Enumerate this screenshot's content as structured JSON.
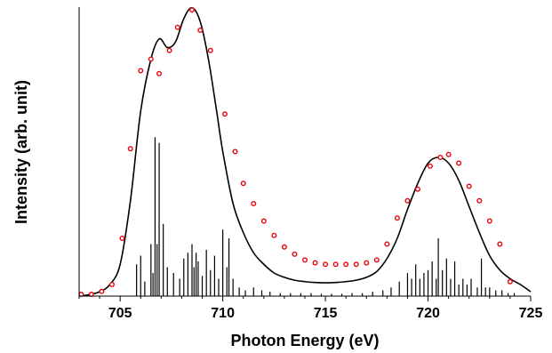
{
  "chart_data": {
    "type": "line",
    "title": "",
    "xlabel": "Photon Energy (eV)",
    "ylabel": "Intensity (arb. unit)",
    "xlim": [
      703,
      725
    ],
    "ylim": [
      0,
      1.0
    ],
    "x_ticks": [
      "705",
      "710",
      "715",
      "720",
      "725"
    ],
    "y_ticks_labeled": false,
    "grid": false,
    "legend": "none",
    "colors": {
      "line": "#000000",
      "points": "#e8000b",
      "sticks": "#000000"
    },
    "series": [
      {
        "kind": "line",
        "x": [
          703.0,
          703.5,
          704.0,
          704.5,
          705.0,
          705.5,
          706.0,
          706.5,
          706.9,
          707.3,
          707.7,
          708.1,
          708.5,
          708.9,
          709.3,
          709.7,
          710.0,
          710.5,
          711.0,
          711.5,
          712.0,
          712.5,
          713.0,
          713.5,
          714.0,
          714.5,
          715.0,
          715.5,
          716.0,
          716.5,
          717.0,
          717.5,
          718.0,
          718.5,
          719.0,
          719.5,
          720.0,
          720.5,
          721.0,
          721.5,
          722.0,
          722.5,
          723.0,
          723.5,
          724.0,
          724.5,
          725.0
        ],
        "y": [
          0.0,
          0.005,
          0.015,
          0.04,
          0.11,
          0.33,
          0.64,
          0.82,
          0.89,
          0.86,
          0.88,
          0.96,
          0.998,
          0.95,
          0.82,
          0.64,
          0.5,
          0.32,
          0.22,
          0.15,
          0.11,
          0.08,
          0.065,
          0.055,
          0.05,
          0.047,
          0.046,
          0.047,
          0.05,
          0.055,
          0.065,
          0.085,
          0.13,
          0.2,
          0.3,
          0.39,
          0.46,
          0.48,
          0.46,
          0.4,
          0.31,
          0.22,
          0.14,
          0.09,
          0.06,
          0.04,
          0.015
        ]
      },
      {
        "kind": "scatter",
        "x": [
          703.1,
          703.6,
          704.1,
          704.6,
          705.1,
          705.5,
          706.0,
          706.5,
          706.9,
          707.4,
          707.8,
          708.5,
          708.9,
          709.4,
          710.1,
          710.6,
          711.0,
          711.5,
          712.0,
          712.5,
          713.0,
          713.5,
          714.0,
          714.5,
          715.0,
          715.5,
          716.0,
          716.5,
          717.0,
          717.5,
          718.0,
          718.5,
          719.0,
          719.5,
          720.1,
          720.6,
          721.0,
          721.5,
          722.0,
          722.5,
          723.0,
          723.5,
          724.0
        ],
        "y": [
          0.006,
          0.006,
          0.016,
          0.04,
          0.2,
          0.51,
          0.78,
          0.82,
          0.77,
          0.85,
          0.93,
          0.99,
          0.92,
          0.85,
          0.63,
          0.5,
          0.39,
          0.32,
          0.26,
          0.21,
          0.17,
          0.145,
          0.125,
          0.115,
          0.11,
          0.11,
          0.11,
          0.11,
          0.115,
          0.125,
          0.18,
          0.27,
          0.33,
          0.37,
          0.45,
          0.48,
          0.49,
          0.46,
          0.38,
          0.33,
          0.26,
          0.18,
          0.05
        ]
      },
      {
        "kind": "stick",
        "x": [
          705.8,
          706.0,
          706.2,
          706.5,
          706.6,
          706.7,
          706.8,
          706.9,
          707.1,
          707.3,
          707.6,
          707.9,
          708.1,
          708.3,
          708.5,
          708.6,
          708.7,
          708.8,
          709.0,
          709.2,
          709.4,
          709.6,
          709.8,
          710.0,
          710.2,
          710.3,
          710.5,
          710.8,
          711.1,
          711.5,
          711.9,
          712.3,
          712.8,
          713.3,
          713.8,
          714.3,
          714.8,
          715.3,
          715.8,
          716.3,
          716.8,
          717.3,
          717.8,
          718.2,
          718.6,
          719.0,
          719.2,
          719.4,
          719.6,
          719.8,
          720.0,
          720.2,
          720.4,
          720.5,
          720.7,
          720.9,
          721.1,
          721.3,
          721.5,
          721.7,
          721.9,
          722.1,
          722.4,
          722.6,
          722.8,
          723.0,
          723.3,
          723.6,
          723.9,
          724.2
        ],
        "y": [
          0.11,
          0.14,
          0.05,
          0.18,
          0.08,
          0.55,
          0.18,
          0.53,
          0.25,
          0.1,
          0.08,
          0.06,
          0.13,
          0.15,
          0.18,
          0.1,
          0.15,
          0.12,
          0.07,
          0.16,
          0.09,
          0.14,
          0.06,
          0.23,
          0.1,
          0.2,
          0.06,
          0.03,
          0.02,
          0.03,
          0.02,
          0.015,
          0.01,
          0.01,
          0.01,
          0.01,
          0.008,
          0.008,
          0.008,
          0.01,
          0.01,
          0.015,
          0.02,
          0.03,
          0.05,
          0.08,
          0.06,
          0.11,
          0.06,
          0.08,
          0.09,
          0.12,
          0.06,
          0.2,
          0.09,
          0.13,
          0.06,
          0.12,
          0.04,
          0.06,
          0.04,
          0.06,
          0.03,
          0.13,
          0.03,
          0.03,
          0.02,
          0.02,
          0.01,
          0.01
        ]
      }
    ]
  }
}
